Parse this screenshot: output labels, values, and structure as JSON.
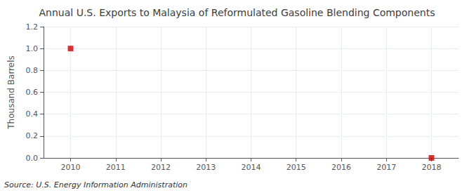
{
  "chart_data": {
    "type": "scatter",
    "title": "Annual U.S. Exports to Malaysia of Reformulated Gasoline Blending Components",
    "ylabel": "Thousand Barrels",
    "annotation": "Source: U.S. Energy Information Administration",
    "x": [
      2010,
      2018
    ],
    "values": [
      1.0,
      0.0
    ],
    "color": "#cc0000",
    "marker": "square",
    "xlim": [
      2009.4,
      2018.6
    ],
    "ylim": [
      0.0,
      1.2
    ],
    "xticks": [
      2010,
      2011,
      2012,
      2013,
      2014,
      2015,
      2016,
      2017,
      2018
    ],
    "yticks": [
      {
        "value": 0.0,
        "label": "0.0"
      },
      {
        "value": 0.2,
        "label": "0.2"
      },
      {
        "value": 0.4,
        "label": "0.4"
      },
      {
        "value": 0.6,
        "label": "0.6"
      },
      {
        "value": 0.8,
        "label": "0.8"
      },
      {
        "value": 1.0,
        "label": "1.0"
      },
      {
        "value": 1.2,
        "label": "1.2"
      }
    ],
    "grid": true
  }
}
